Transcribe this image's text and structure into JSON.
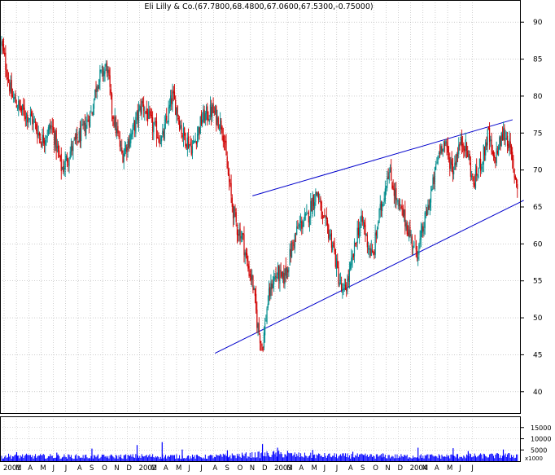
{
  "chart_data": {
    "type": "candlestick",
    "title": "Eli Lilly & Co.(67.7800,68.4800,67.0600,67.5300,-0.75000)",
    "price_axis": {
      "ylim": [
        37,
        93
      ],
      "ticks": [
        40,
        45,
        50,
        55,
        60,
        65,
        70,
        75,
        80,
        85,
        90
      ],
      "tick_labels": [
        "40",
        "45",
        "50",
        "55",
        "60",
        "65",
        "70",
        "75",
        "80",
        "85",
        "90"
      ],
      "position": "right"
    },
    "volume_axis": {
      "ylim": [
        0,
        20000
      ],
      "ticks": [
        5000,
        10000,
        15000
      ],
      "tick_labels": [
        "5000",
        "10000",
        "15000"
      ],
      "unit_label": "x1000",
      "position": "right"
    },
    "time_axis": {
      "labels": [
        "2001",
        "M",
        "A",
        "M",
        "J",
        "J",
        "A",
        "S",
        "O",
        "N",
        "D",
        "2002",
        "M",
        "A",
        "M",
        "J",
        "J",
        "A",
        "S",
        "O",
        "N",
        "D",
        "2003",
        "M",
        "A",
        "M",
        "J",
        "J",
        "A",
        "S",
        "O",
        "N",
        "D",
        "2004",
        "M",
        "A",
        "M",
        "J",
        "J"
      ],
      "grid": "vertical dotted per month"
    },
    "colors": {
      "up": "#008c8c",
      "down": "#d00000",
      "trendline": "#0000cc",
      "volume": "#0000ff",
      "grid": "#b0b0b0"
    },
    "price_path": [
      [
        0,
        87
      ],
      [
        2,
        80
      ],
      [
        4,
        78
      ],
      [
        6,
        77
      ],
      [
        8,
        74
      ],
      [
        10,
        76
      ],
      [
        12,
        70
      ],
      [
        14,
        73
      ],
      [
        16,
        75
      ],
      [
        18,
        78
      ],
      [
        19,
        82
      ],
      [
        20,
        83
      ],
      [
        21,
        84
      ],
      [
        22,
        78
      ],
      [
        24,
        72
      ],
      [
        26,
        75
      ],
      [
        28,
        79
      ],
      [
        30,
        76
      ],
      [
        32,
        74
      ],
      [
        33,
        77
      ],
      [
        34,
        80
      ],
      [
        35,
        78
      ],
      [
        36,
        75
      ],
      [
        38,
        73
      ],
      [
        40,
        77
      ],
      [
        42,
        78
      ],
      [
        44,
        76
      ],
      [
        45,
        70
      ],
      [
        46,
        65
      ],
      [
        47,
        62
      ],
      [
        48,
        61
      ],
      [
        49,
        57
      ],
      [
        50,
        55
      ],
      [
        51,
        49
      ],
      [
        52,
        46
      ],
      [
        53,
        52
      ],
      [
        54,
        55
      ],
      [
        55,
        56
      ],
      [
        56,
        55
      ],
      [
        57,
        57
      ],
      [
        58,
        60
      ],
      [
        59,
        62
      ],
      [
        60,
        63
      ],
      [
        61,
        63.5
      ],
      [
        62,
        66
      ],
      [
        63,
        67
      ],
      [
        64,
        63
      ],
      [
        65,
        62
      ],
      [
        66,
        60
      ],
      [
        67,
        56
      ],
      [
        68,
        53
      ],
      [
        69,
        55
      ],
      [
        70,
        58
      ],
      [
        71,
        62
      ],
      [
        72,
        63
      ],
      [
        73,
        60
      ],
      [
        74,
        58
      ],
      [
        75,
        63
      ],
      [
        76,
        66
      ],
      [
        77,
        70
      ],
      [
        78,
        68
      ],
      [
        79,
        65
      ],
      [
        80,
        64
      ],
      [
        81,
        62
      ],
      [
        82,
        60
      ],
      [
        83,
        59
      ],
      [
        84,
        62
      ],
      [
        85,
        65
      ],
      [
        86,
        68
      ],
      [
        87,
        72
      ],
      [
        88,
        74
      ],
      [
        89,
        72
      ],
      [
        90,
        70
      ],
      [
        91,
        73
      ],
      [
        92,
        74
      ],
      [
        93,
        72
      ],
      [
        94,
        68
      ],
      [
        95,
        70
      ],
      [
        96,
        72
      ],
      [
        97,
        75
      ],
      [
        98,
        71
      ],
      [
        99,
        73
      ],
      [
        100,
        75
      ],
      [
        101,
        74
      ],
      [
        102,
        70
      ],
      [
        103,
        67.5
      ]
    ],
    "volume_profile": [
      [
        0,
        2200
      ],
      [
        10,
        2000
      ],
      [
        20,
        1900
      ],
      [
        30,
        2100
      ],
      [
        40,
        1800
      ],
      [
        50,
        2600
      ],
      [
        55,
        3000
      ],
      [
        60,
        2400
      ],
      [
        70,
        2200
      ],
      [
        80,
        2000
      ],
      [
        90,
        2100
      ],
      [
        100,
        2300
      ],
      [
        103,
        2400
      ]
    ],
    "volume_spikes": [
      [
        3,
        4000
      ],
      [
        11,
        3800
      ],
      [
        18,
        5600
      ],
      [
        27,
        7200
      ],
      [
        32,
        8500
      ],
      [
        36,
        5200
      ],
      [
        45,
        4800
      ],
      [
        52,
        7600
      ],
      [
        55,
        6000
      ],
      [
        57,
        4600
      ],
      [
        62,
        5000
      ],
      [
        70,
        4200
      ],
      [
        76,
        3500
      ],
      [
        83,
        6000
      ],
      [
        90,
        5800
      ],
      [
        93,
        4500
      ],
      [
        100,
        5200
      ]
    ],
    "trendlines": [
      {
        "name": "upper",
        "start": [
          67,
          66.5
        ],
        "end": [
          136.5,
          76.8
        ]
      },
      {
        "name": "lower",
        "start": [
          57,
          45.2
        ],
        "end": [
          139.5,
          65.9
        ]
      }
    ]
  }
}
